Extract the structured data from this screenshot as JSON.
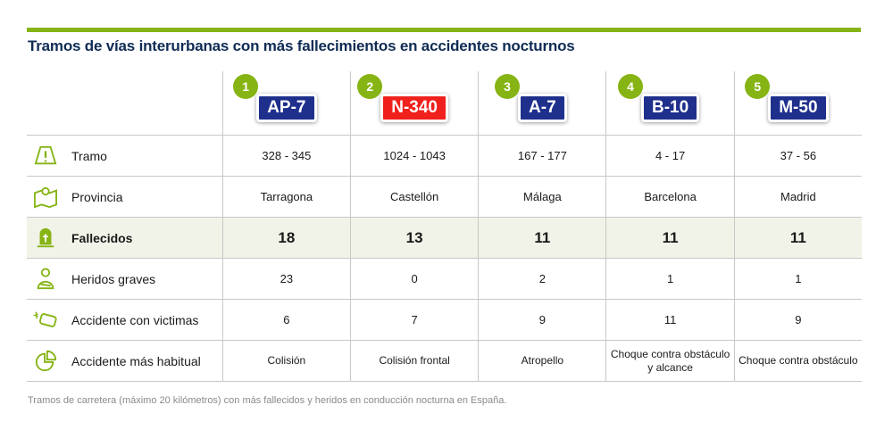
{
  "title": "Tramos de vías interurbanas con más fallecimientos en accidentes nocturnos",
  "colors": {
    "accent": "#86b414",
    "navy": "#1e3a8a",
    "red": "#ee1c1c"
  },
  "roads": [
    {
      "rank": "1",
      "name": "AP-7",
      "color": "#1e2f8c"
    },
    {
      "rank": "2",
      "name": "N-340",
      "color": "#f0201c"
    },
    {
      "rank": "3",
      "name": "A-7",
      "color": "#1e2f8c"
    },
    {
      "rank": "4",
      "name": "B-10",
      "color": "#1e2f8c"
    },
    {
      "rank": "5",
      "name": "M-50",
      "color": "#1e2f8c"
    }
  ],
  "rows": [
    {
      "label": "Tramo",
      "icon": "road-warning-icon",
      "values": [
        "328 - 345",
        "1024 - 1043",
        "167 - 177",
        "4 - 17",
        "37 - 56"
      ]
    },
    {
      "label": "Provincia",
      "icon": "map-pin-icon",
      "values": [
        "Tarragona",
        "Castellón",
        "Málaga",
        "Barcelona",
        "Madrid"
      ]
    },
    {
      "label": "Fallecidos",
      "icon": "tombstone-icon",
      "values": [
        "18",
        "13",
        "11",
        "11",
        "11"
      ]
    },
    {
      "label": "Heridos graves",
      "icon": "injured-person-icon",
      "values": [
        "23",
        "0",
        "2",
        "1",
        "1"
      ]
    },
    {
      "label": "Accidente con victimas",
      "icon": "car-crash-icon",
      "values": [
        "6",
        "7",
        "9",
        "11",
        "9"
      ]
    },
    {
      "label": "Accidente más habitual",
      "icon": "pie-chart-icon",
      "values": [
        "Colisión",
        "Colisión frontal",
        "Atropello",
        "Choque contra obstáculo y alcance",
        "Choque contra obstáculo"
      ]
    }
  ],
  "footnote": "Tramos de carretera (máximo 20 kilómetros) con más fallecidos y heridos en conducción nocturna en España."
}
